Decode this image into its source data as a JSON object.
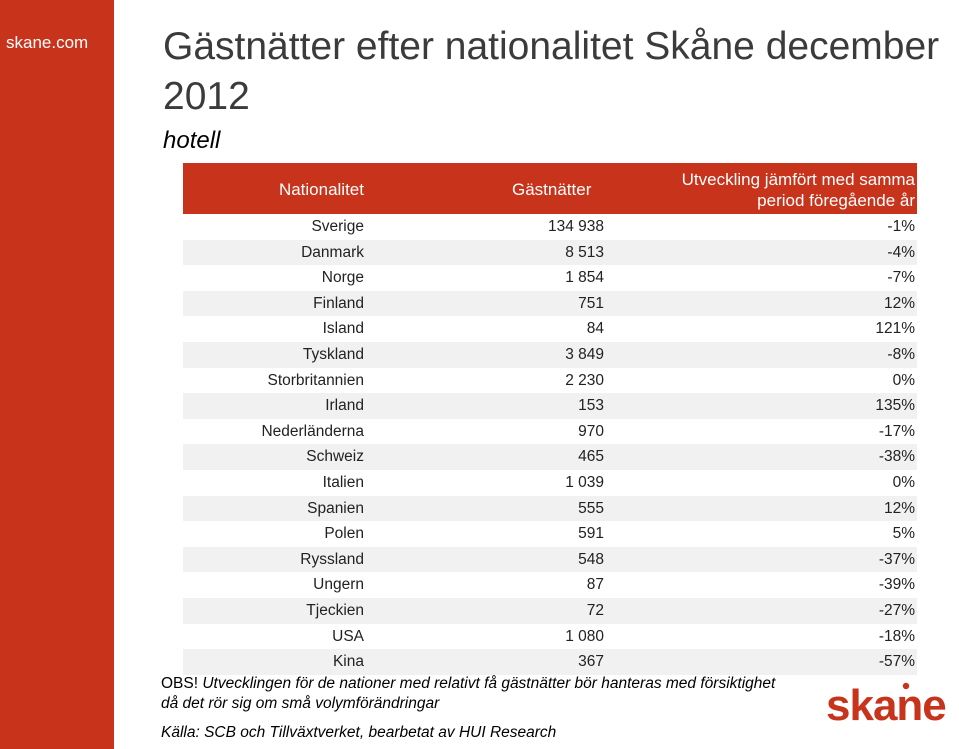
{
  "sidebar": {
    "site_label": "skane.com"
  },
  "header": {
    "title": "Gästnätter efter nationalitet Skåne december 2012",
    "subtitle": "hotell"
  },
  "table": {
    "columns": {
      "nationality": "Nationalitet",
      "guest_nights": "Gästnätter",
      "development_line1": "Utveckling jämfört med samma",
      "development_line2": "period föregående år"
    },
    "rows": [
      {
        "nationality": "Sverige",
        "guest_nights": "134 938",
        "development": "-1%"
      },
      {
        "nationality": "Danmark",
        "guest_nights": "8 513",
        "development": "-4%"
      },
      {
        "nationality": "Norge",
        "guest_nights": "1 854",
        "development": "-7%"
      },
      {
        "nationality": "Finland",
        "guest_nights": "751",
        "development": "12%"
      },
      {
        "nationality": "Island",
        "guest_nights": "84",
        "development": "121%"
      },
      {
        "nationality": "Tyskland",
        "guest_nights": "3 849",
        "development": "-8%"
      },
      {
        "nationality": "Storbritannien",
        "guest_nights": "2 230",
        "development": "0%"
      },
      {
        "nationality": "Irland",
        "guest_nights": "153",
        "development": "135%"
      },
      {
        "nationality": "Nederländerna",
        "guest_nights": "970",
        "development": "-17%"
      },
      {
        "nationality": "Schweiz",
        "guest_nights": "465",
        "development": "-38%"
      },
      {
        "nationality": "Italien",
        "guest_nights": "1 039",
        "development": "0%"
      },
      {
        "nationality": "Spanien",
        "guest_nights": "555",
        "development": "12%"
      },
      {
        "nationality": "Polen",
        "guest_nights": "591",
        "development": "5%"
      },
      {
        "nationality": "Ryssland",
        "guest_nights": "548",
        "development": "-37%"
      },
      {
        "nationality": "Ungern",
        "guest_nights": "87",
        "development": "-39%"
      },
      {
        "nationality": "Tjeckien",
        "guest_nights": "72",
        "development": "-27%"
      },
      {
        "nationality": "USA",
        "guest_nights": "1 080",
        "development": "-18%"
      },
      {
        "nationality": "Kina",
        "guest_nights": "367",
        "development": "-57%"
      }
    ]
  },
  "note": {
    "lead": "OBS!",
    "line1": "Utvecklingen för de nationer med relativt få gästnätter bör hanteras med försiktighet",
    "line2": "då det rör sig om små volymförändringar"
  },
  "source": "Källa: SCB och Tillväxtverket, bearbetat av HUI Research",
  "logo": {
    "text": "skane",
    "color": "#c8331b"
  },
  "colors": {
    "accent": "#c8331b",
    "row_alt": "#f1f1f1",
    "title": "#3b3b3b"
  }
}
